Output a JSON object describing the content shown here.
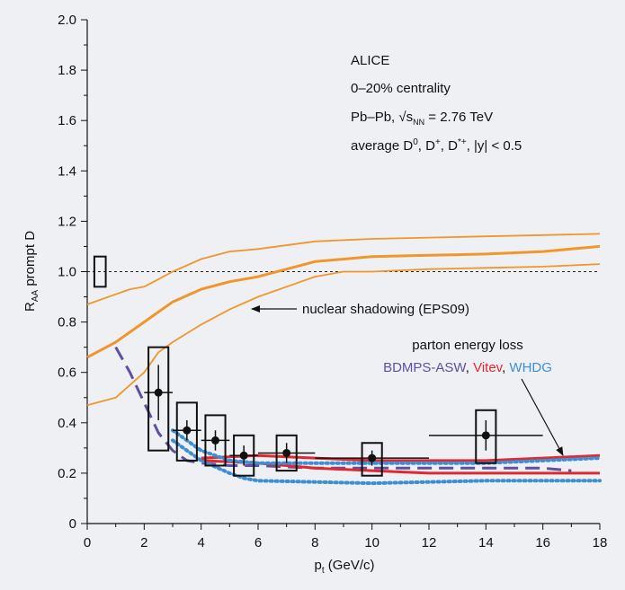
{
  "chart_data": {
    "type": "scatter",
    "xlabel": "p",
    "xlabel_sub": "t",
    "xlabel_unit": " (GeV/c)",
    "ylabel_pre": "R",
    "ylabel_sub": "AA",
    "ylabel_post": " prompt D",
    "xlim": [
      0,
      18
    ],
    "ylim": [
      0,
      2.0
    ],
    "x_ticks": [
      0,
      2,
      4,
      6,
      8,
      10,
      12,
      14,
      16,
      18
    ],
    "y_ticks": [
      {
        "value": 0,
        "label": "0"
      },
      {
        "value": 0.2,
        "label": "0.2"
      },
      {
        "value": 0.4,
        "label": "0.4"
      },
      {
        "value": 0.6,
        "label": "0.6"
      },
      {
        "value": 0.8,
        "label": "0.8"
      },
      {
        "value": 1.0,
        "label": "1.0"
      },
      {
        "value": 1.2,
        "label": "1.2"
      },
      {
        "value": 1.4,
        "label": "1.4"
      },
      {
        "value": 1.6,
        "label": "1.6"
      },
      {
        "value": 1.8,
        "label": "1.8"
      },
      {
        "value": 2.0,
        "label": "2.0"
      }
    ],
    "reference_line": 1.0,
    "normalization_box": {
      "x": [
        0.25,
        0.65
      ],
      "y": [
        0.94,
        1.06
      ]
    },
    "info_lines": {
      "l1": "ALICE",
      "l2": "0–20% centrality",
      "l3a": "Pb–Pb, √s",
      "l3sub": "NN",
      "l3b": " = 2.76 TeV",
      "l4a": "average D",
      "l4s1": "0",
      "l4b": ", D",
      "l4s2": "+",
      "l4c": ", D",
      "l4s3": "*+",
      "l4d": ", |y| < 0.5"
    },
    "annotations": {
      "shadowing": "nuclear shadowing (EPS09)",
      "energy_loss": "parton energy loss",
      "model1": "BDMPS-ASW",
      "model2": "Vitev",
      "model3": "WHDG",
      "sep": ", "
    },
    "colors": {
      "data": "#111111",
      "shadowing": "#f0962b",
      "bdmps": "#5e4fa2",
      "vitev": "#e0282e",
      "whdg": "#3d8fd1",
      "background": "#eef0f4"
    },
    "points": [
      {
        "x": 2.5,
        "xerr": 0.5,
        "y": 0.52,
        "yerr": 0.11,
        "syst_low": 0.29,
        "syst_high": 0.7
      },
      {
        "x": 3.5,
        "xerr": 0.5,
        "y": 0.37,
        "yerr": 0.04,
        "syst_low": 0.25,
        "syst_high": 0.48
      },
      {
        "x": 4.5,
        "xerr": 0.5,
        "y": 0.33,
        "yerr": 0.04,
        "syst_low": 0.23,
        "syst_high": 0.43
      },
      {
        "x": 5.5,
        "xerr": 0.5,
        "y": 0.27,
        "yerr": 0.04,
        "syst_low": 0.19,
        "syst_high": 0.35
      },
      {
        "x": 7.0,
        "xerr": 1.0,
        "y": 0.28,
        "yerr": 0.04,
        "syst_low": 0.21,
        "syst_high": 0.35
      },
      {
        "x": 10.0,
        "xerr": 2.0,
        "y": 0.26,
        "yerr": 0.03,
        "syst_low": 0.19,
        "syst_high": 0.32
      },
      {
        "x": 14.0,
        "xerr": 2.0,
        "y": 0.35,
        "yerr": 0.06,
        "syst_low": 0.24,
        "syst_high": 0.45
      }
    ],
    "series": [
      {
        "key": "shadow_central",
        "style": "shadow_thick",
        "x": [
          0,
          1,
          2,
          3,
          4,
          5,
          6,
          7,
          8,
          10,
          12,
          14,
          16,
          18
        ],
        "y": [
          0.66,
          0.72,
          0.8,
          0.88,
          0.93,
          0.96,
          0.98,
          1.01,
          1.04,
          1.06,
          1.065,
          1.07,
          1.08,
          1.1
        ]
      },
      {
        "key": "shadow_upper",
        "style": "shadow_thin",
        "x": [
          0,
          1,
          1.5,
          2,
          2.5,
          3,
          4,
          5,
          6,
          8,
          10,
          12,
          14,
          16,
          18
        ],
        "y": [
          0.87,
          0.91,
          0.93,
          0.94,
          0.97,
          1.0,
          1.05,
          1.08,
          1.09,
          1.12,
          1.13,
          1.135,
          1.14,
          1.145,
          1.15
        ]
      },
      {
        "key": "shadow_lower",
        "style": "shadow_thin",
        "x": [
          0,
          1,
          2,
          2.5,
          3,
          4,
          5,
          6,
          7,
          8,
          9,
          10,
          12,
          14,
          16,
          18
        ],
        "y": [
          0.47,
          0.5,
          0.6,
          0.68,
          0.72,
          0.79,
          0.85,
          0.9,
          0.94,
          0.98,
          1.0,
          1.0,
          1.01,
          1.015,
          1.02,
          1.03
        ]
      },
      {
        "key": "bdmps",
        "style": "bdmps",
        "x": [
          1,
          1.5,
          2,
          2.5,
          3,
          3.5,
          4,
          5,
          6,
          8,
          10,
          12,
          14,
          16,
          17
        ],
        "y": [
          0.7,
          0.6,
          0.48,
          0.36,
          0.29,
          0.25,
          0.24,
          0.23,
          0.23,
          0.22,
          0.22,
          0.22,
          0.22,
          0.22,
          0.21
        ]
      },
      {
        "key": "vitev_upper",
        "style": "vitev",
        "x": [
          4,
          6,
          8,
          10,
          12,
          14,
          16,
          18
        ],
        "y": [
          0.26,
          0.27,
          0.26,
          0.25,
          0.25,
          0.25,
          0.26,
          0.27
        ]
      },
      {
        "key": "vitev_lower",
        "style": "vitev",
        "x": [
          4,
          6,
          8,
          10,
          12,
          14,
          16,
          18
        ],
        "y": [
          0.25,
          0.24,
          0.22,
          0.21,
          0.2,
          0.2,
          0.2,
          0.2
        ]
      },
      {
        "key": "whdg_upper",
        "style": "whdg",
        "x": [
          3,
          4,
          5,
          6,
          8,
          10,
          12,
          14,
          16,
          18
        ],
        "y": [
          0.37,
          0.29,
          0.25,
          0.24,
          0.24,
          0.24,
          0.24,
          0.24,
          0.25,
          0.26
        ]
      },
      {
        "key": "whdg_lower",
        "style": "whdg",
        "x": [
          3,
          4,
          5,
          5.5,
          6,
          8,
          10,
          12,
          14,
          16,
          18
        ],
        "y": [
          0.33,
          0.25,
          0.2,
          0.18,
          0.17,
          0.165,
          0.16,
          0.165,
          0.17,
          0.17,
          0.17
        ]
      }
    ]
  }
}
